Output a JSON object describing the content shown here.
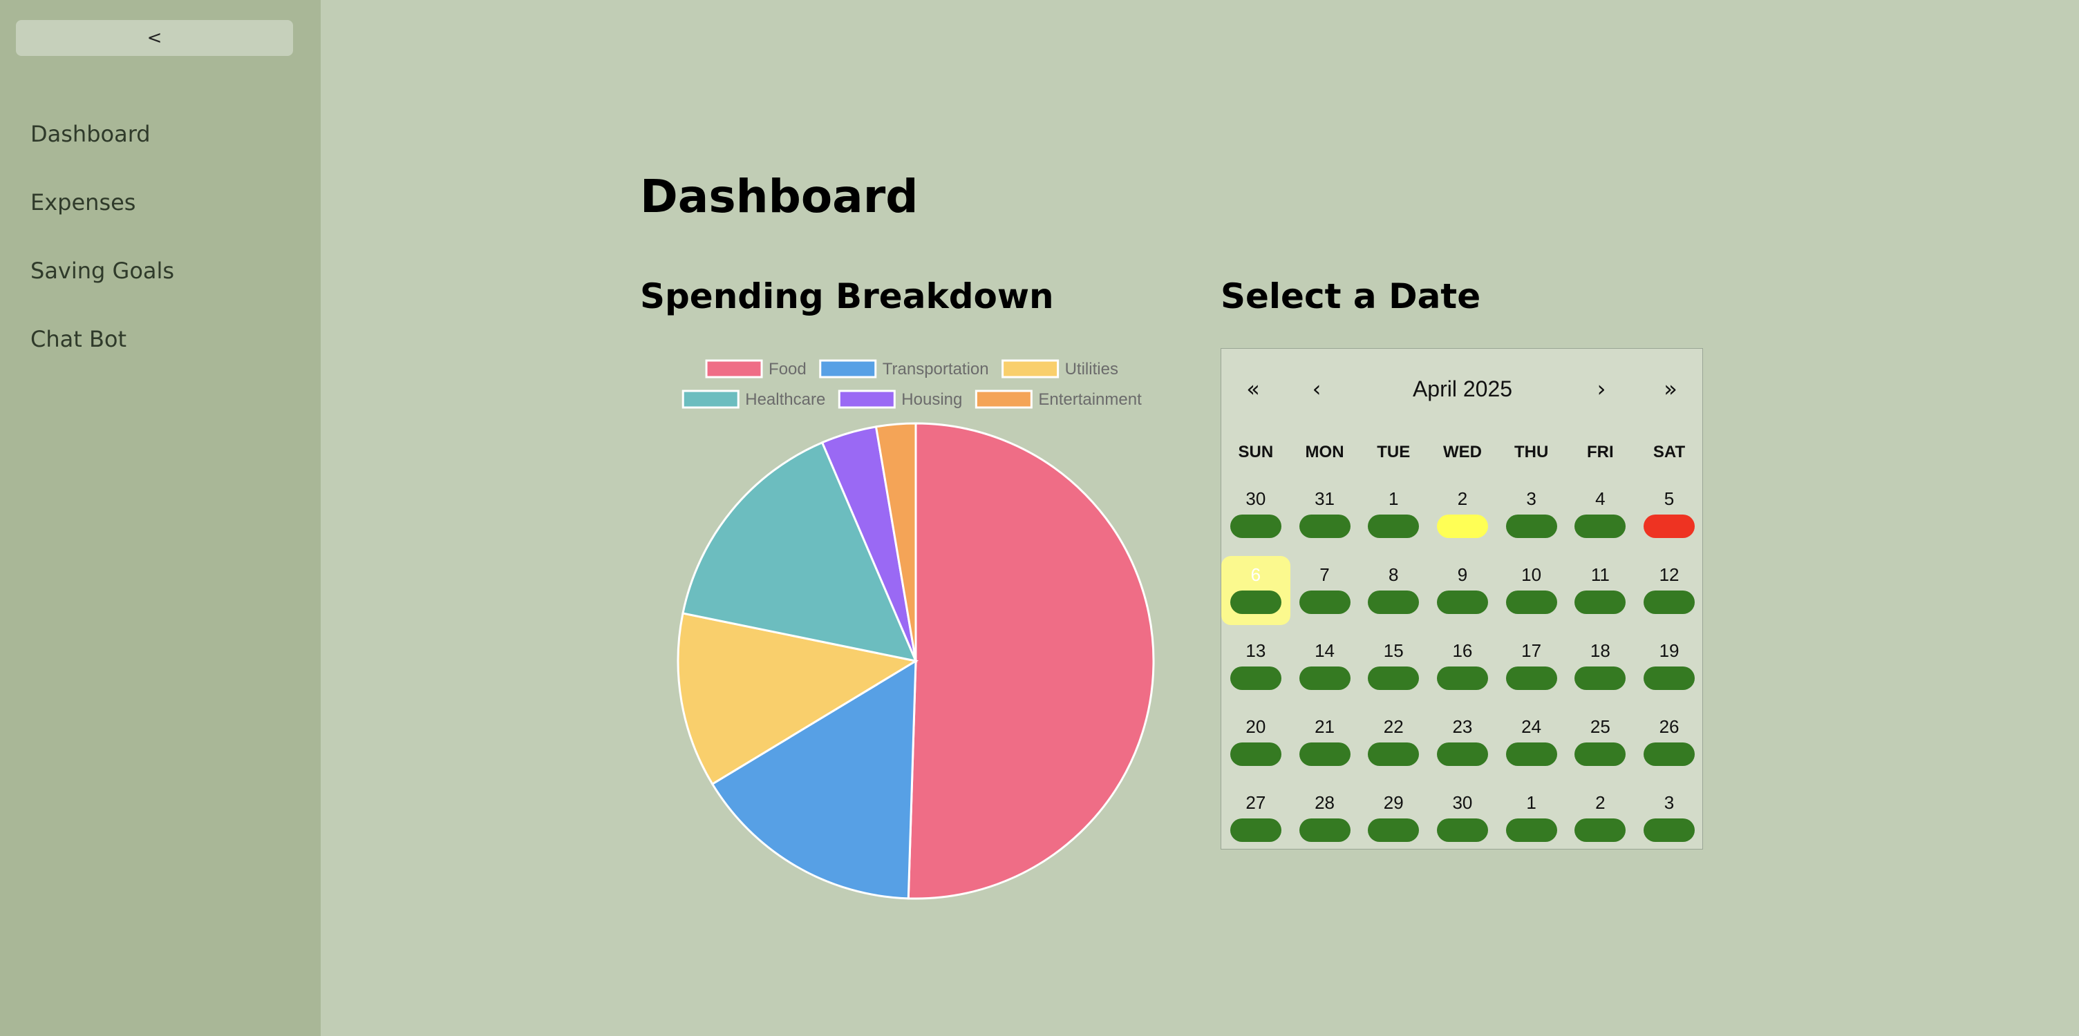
{
  "sidebar": {
    "collapse_label": "<",
    "items": [
      {
        "label": "Dashboard",
        "name": "dashboard"
      },
      {
        "label": "Expenses",
        "name": "expenses"
      },
      {
        "label": "Saving Goals",
        "name": "saving-goals"
      },
      {
        "label": "Chat Bot",
        "name": "chat-bot"
      }
    ]
  },
  "main": {
    "title": "Dashboard",
    "spending_title": "Spending Breakdown",
    "date_title": "Select a Date"
  },
  "chart_data": {
    "type": "pie",
    "title": "",
    "legend_position": "top",
    "slices": [
      {
        "label": "Food",
        "value": 51,
        "color": "#ef6d86"
      },
      {
        "label": "Transportation",
        "value": 16,
        "color": "#57a0e5"
      },
      {
        "label": "Utilities",
        "value": 12,
        "color": "#f9cf6c"
      },
      {
        "label": "Healthcare",
        "value": 15.5,
        "color": "#6cbdbf"
      },
      {
        "label": "Housing",
        "value": 3.8,
        "color": "#9a69f4"
      },
      {
        "label": "Entertainment",
        "value": 2.7,
        "color": "#f4a457"
      }
    ]
  },
  "calendar": {
    "nav": {
      "prev_year": "«",
      "prev_month": "‹",
      "next_month": "›",
      "next_year": "»"
    },
    "month_label": "April 2025",
    "weekdays": [
      "SUN",
      "MON",
      "TUE",
      "WED",
      "THU",
      "FRI",
      "SAT"
    ],
    "selected_day": "6",
    "status_colors": {
      "normal": "#357a22",
      "warning": "#ffff55",
      "over": "#ee3322"
    },
    "weeks": [
      [
        {
          "d": "30",
          "s": "normal"
        },
        {
          "d": "31",
          "s": "normal"
        },
        {
          "d": "1",
          "s": "normal"
        },
        {
          "d": "2",
          "s": "warning"
        },
        {
          "d": "3",
          "s": "normal"
        },
        {
          "d": "4",
          "s": "normal"
        },
        {
          "d": "5",
          "s": "over"
        }
      ],
      [
        {
          "d": "6",
          "s": "normal",
          "selected": true
        },
        {
          "d": "7",
          "s": "normal"
        },
        {
          "d": "8",
          "s": "normal"
        },
        {
          "d": "9",
          "s": "normal"
        },
        {
          "d": "10",
          "s": "normal"
        },
        {
          "d": "11",
          "s": "normal"
        },
        {
          "d": "12",
          "s": "normal"
        }
      ],
      [
        {
          "d": "13",
          "s": "normal"
        },
        {
          "d": "14",
          "s": "normal"
        },
        {
          "d": "15",
          "s": "normal"
        },
        {
          "d": "16",
          "s": "normal"
        },
        {
          "d": "17",
          "s": "normal"
        },
        {
          "d": "18",
          "s": "normal"
        },
        {
          "d": "19",
          "s": "normal"
        }
      ],
      [
        {
          "d": "20",
          "s": "normal"
        },
        {
          "d": "21",
          "s": "normal"
        },
        {
          "d": "22",
          "s": "normal"
        },
        {
          "d": "23",
          "s": "normal"
        },
        {
          "d": "24",
          "s": "normal"
        },
        {
          "d": "25",
          "s": "normal"
        },
        {
          "d": "26",
          "s": "normal"
        }
      ],
      [
        {
          "d": "27",
          "s": "normal"
        },
        {
          "d": "28",
          "s": "normal"
        },
        {
          "d": "29",
          "s": "normal"
        },
        {
          "d": "30",
          "s": "normal"
        },
        {
          "d": "1",
          "s": "normal"
        },
        {
          "d": "2",
          "s": "normal"
        },
        {
          "d": "3",
          "s": "normal"
        }
      ]
    ]
  }
}
